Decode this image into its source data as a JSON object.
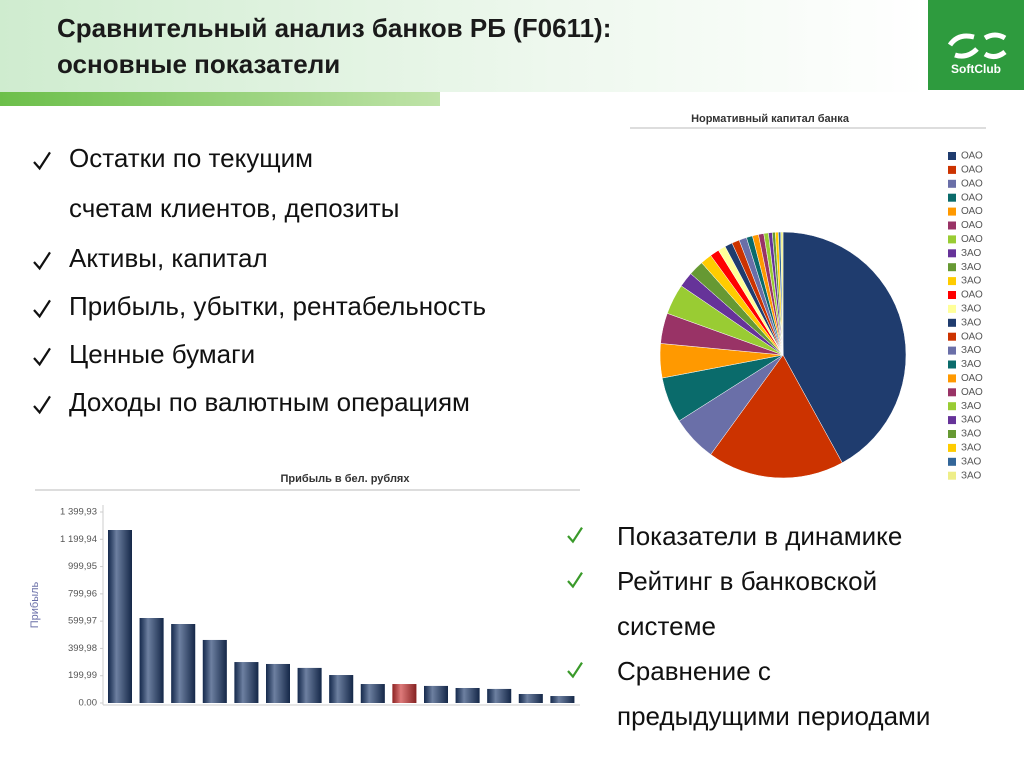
{
  "header": {
    "title": [
      "Сравнительный анализ банков РБ (F0611):",
      "основные показатели"
    ]
  },
  "logo": {
    "text": "SoftClub"
  },
  "bullets": [
    {
      "lines": [
        "Остатки по текущим",
        "счетам клиентов, депозиты"
      ]
    },
    {
      "lines": [
        "Активы, капитал"
      ]
    },
    {
      "lines": [
        "Прибыль, убытки, рентабельность"
      ]
    },
    {
      "lines": [
        "Ценные бумаги"
      ]
    },
    {
      "lines": [
        "Доходы по валютным операциям"
      ]
    }
  ],
  "bullets2": [
    {
      "lines": [
        "Показатели в динамике"
      ]
    },
    {
      "lines": [
        "Рейтинг в банковской",
        "системе"
      ]
    },
    {
      "lines": [
        "Сравнение с",
        "предыдущими периодами"
      ]
    }
  ],
  "chart_data": [
    {
      "type": "pie",
      "title": "Нормативный капитал банка",
      "categories": [
        "ОАО",
        "ОАО",
        "ОАО",
        "ОАО",
        "ОАО",
        "ОАО",
        "ОАО",
        "ЗАО",
        "ЗАО",
        "ЗАО",
        "ОАО",
        "ЗАО",
        "ЗАО",
        "ОАО",
        "ЗАО",
        "ЗАО",
        "ОАО",
        "ОАО",
        "ЗАО",
        "ЗАО",
        "ЗАО",
        "ЗАО",
        "ЗАО",
        "ЗАО"
      ],
      "values": [
        42,
        18,
        6,
        6,
        4.5,
        4,
        4,
        2,
        2,
        1.5,
        1.2,
        1,
        1,
        1,
        1,
        0.8,
        0.8,
        0.7,
        0.6,
        0.5,
        0.4,
        0.4,
        0.3,
        0.3
      ],
      "colors": [
        "#1f3c6e",
        "#cc3300",
        "#6a6fa8",
        "#0a6b6b",
        "#ff9900",
        "#993366",
        "#99cc33",
        "#663399",
        "#669933",
        "#ffcc00",
        "#ff0000",
        "#ffff99",
        "#1f3c6e",
        "#cc3300",
        "#6a6fa8",
        "#0a6b6b",
        "#ff9900",
        "#993366",
        "#99cc33",
        "#663399",
        "#669933",
        "#ffcc00",
        "#336699",
        "#eeee88"
      ],
      "legend": "right"
    },
    {
      "type": "bar",
      "title": "Прибыль в бел. рублях",
      "y_label": "Прибыль",
      "categories": [
        null,
        null,
        null,
        null,
        null,
        null,
        null,
        null,
        null,
        null,
        null,
        null,
        null,
        null,
        null
      ],
      "values": [
        1268,
        623,
        579,
        462,
        300,
        286,
        257,
        205,
        139,
        139,
        125,
        110,
        103,
        66,
        51
      ],
      "colors": [
        "#1f3c6e",
        "#1f3c6e",
        "#1f3c6e",
        "#1f3c6e",
        "#1f3c6e",
        "#1f3c6e",
        "#1f3c6e",
        "#1f3c6e",
        "#1f3c6e",
        "#cc3333",
        "#1f3c6e",
        "#1f3c6e",
        "#1f3c6e",
        "#1f3c6e",
        "#1f3c6e"
      ],
      "ylim": [
        0,
        1399.93
      ],
      "yticks": [
        {
          "value": 0,
          "label": "0.00"
        },
        {
          "value": 199.99,
          "label": "199,99"
        },
        {
          "value": 399.98,
          "label": "399,98"
        },
        {
          "value": 599.97,
          "label": "599,97"
        },
        {
          "value": 799.96,
          "label": "799,96"
        },
        {
          "value": 999.95,
          "label": "999,95"
        },
        {
          "value": 1199.94,
          "label": "1 199,94"
        },
        {
          "value": 1399.93,
          "label": "1 399,93"
        }
      ],
      "grid": false
    }
  ]
}
